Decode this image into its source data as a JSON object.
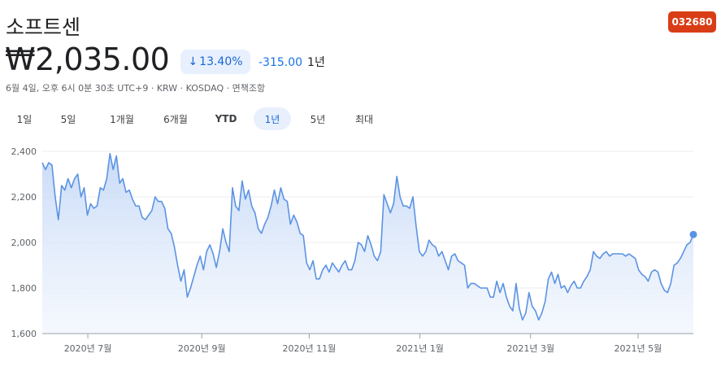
{
  "header": {
    "title": "소프트센",
    "ticker": "032680",
    "price": "₩2,035.00",
    "change_pct": "13.40%",
    "change_abs": "-315.00",
    "change_period": "1년",
    "meta": "6월 4일, 오후 6시 0분 30초 UTC+9 · KRW · KOSDAQ · 면책조항"
  },
  "tabs": [
    "1일",
    "5일",
    "1개월",
    "6개월",
    "YTD",
    "1년",
    "5년",
    "최대"
  ],
  "active_tab": "1년",
  "colors": {
    "line": "#5b93e3",
    "fill": "#dbe7fb",
    "badge": "#d93d16",
    "accent": "#1a73e8"
  },
  "chart_data": {
    "type": "area",
    "xlabel": "",
    "ylabel": "",
    "ylim": [
      1600,
      2400
    ],
    "y_ticks": [
      "1,600",
      "1,800",
      "2,000",
      "2,200",
      "2,400"
    ],
    "x_ticks": [
      "2020년 7월",
      "2020년 9월",
      "2020년 11월",
      "2021년 1월",
      "2021년 3월",
      "2021년 5월"
    ],
    "x_tick_fracs": [
      0.07,
      0.245,
      0.41,
      0.58,
      0.75,
      0.915
    ],
    "series": [
      {
        "values": [
          2350,
          2320,
          2350,
          2340,
          2200,
          2100,
          2250,
          2230,
          2280,
          2240,
          2280,
          2300,
          2200,
          2240,
          2120,
          2170,
          2150,
          2160,
          2240,
          2230,
          2280,
          2390,
          2320,
          2380,
          2260,
          2280,
          2220,
          2230,
          2190,
          2160,
          2160,
          2110,
          2100,
          2120,
          2140,
          2200,
          2180,
          2180,
          2150,
          2060,
          2040,
          1980,
          1900,
          1830,
          1880,
          1760,
          1800,
          1850,
          1900,
          1940,
          1880,
          1960,
          1990,
          1950,
          1890,
          1960,
          2060,
          2000,
          1960,
          2240,
          2160,
          2140,
          2270,
          2190,
          2230,
          2160,
          2130,
          2060,
          2040,
          2080,
          2110,
          2160,
          2230,
          2170,
          2240,
          2190,
          2180,
          2080,
          2120,
          2090,
          2040,
          2030,
          1910,
          1880,
          1920,
          1840,
          1840,
          1880,
          1900,
          1870,
          1910,
          1890,
          1870,
          1900,
          1920,
          1880,
          1880,
          1920,
          2000,
          1990,
          1960,
          2030,
          1990,
          1940,
          1920,
          1960,
          2210,
          2170,
          2130,
          2170,
          2290,
          2200,
          2160,
          2160,
          2150,
          2200,
          2070,
          1960,
          1940,
          1960,
          2010,
          1990,
          1980,
          1940,
          1960,
          1920,
          1880,
          1940,
          1950,
          1920,
          1910,
          1900,
          1800,
          1820,
          1820,
          1810,
          1800,
          1800,
          1800,
          1760,
          1760,
          1830,
          1780,
          1820,
          1760,
          1720,
          1700,
          1820,
          1710,
          1660,
          1690,
          1780,
          1720,
          1700,
          1660,
          1690,
          1740,
          1840,
          1870,
          1820,
          1860,
          1800,
          1810,
          1780,
          1810,
          1830,
          1800,
          1800,
          1830,
          1850,
          1880,
          1960,
          1940,
          1930,
          1950,
          1960,
          1940,
          1950,
          1950,
          1950,
          1950,
          1940,
          1950,
          1940,
          1930,
          1880,
          1860,
          1850,
          1830,
          1870,
          1880,
          1870,
          1820,
          1790,
          1780,
          1820,
          1900,
          1910,
          1930,
          1960,
          1990,
          2000,
          2035
        ]
      }
    ]
  }
}
